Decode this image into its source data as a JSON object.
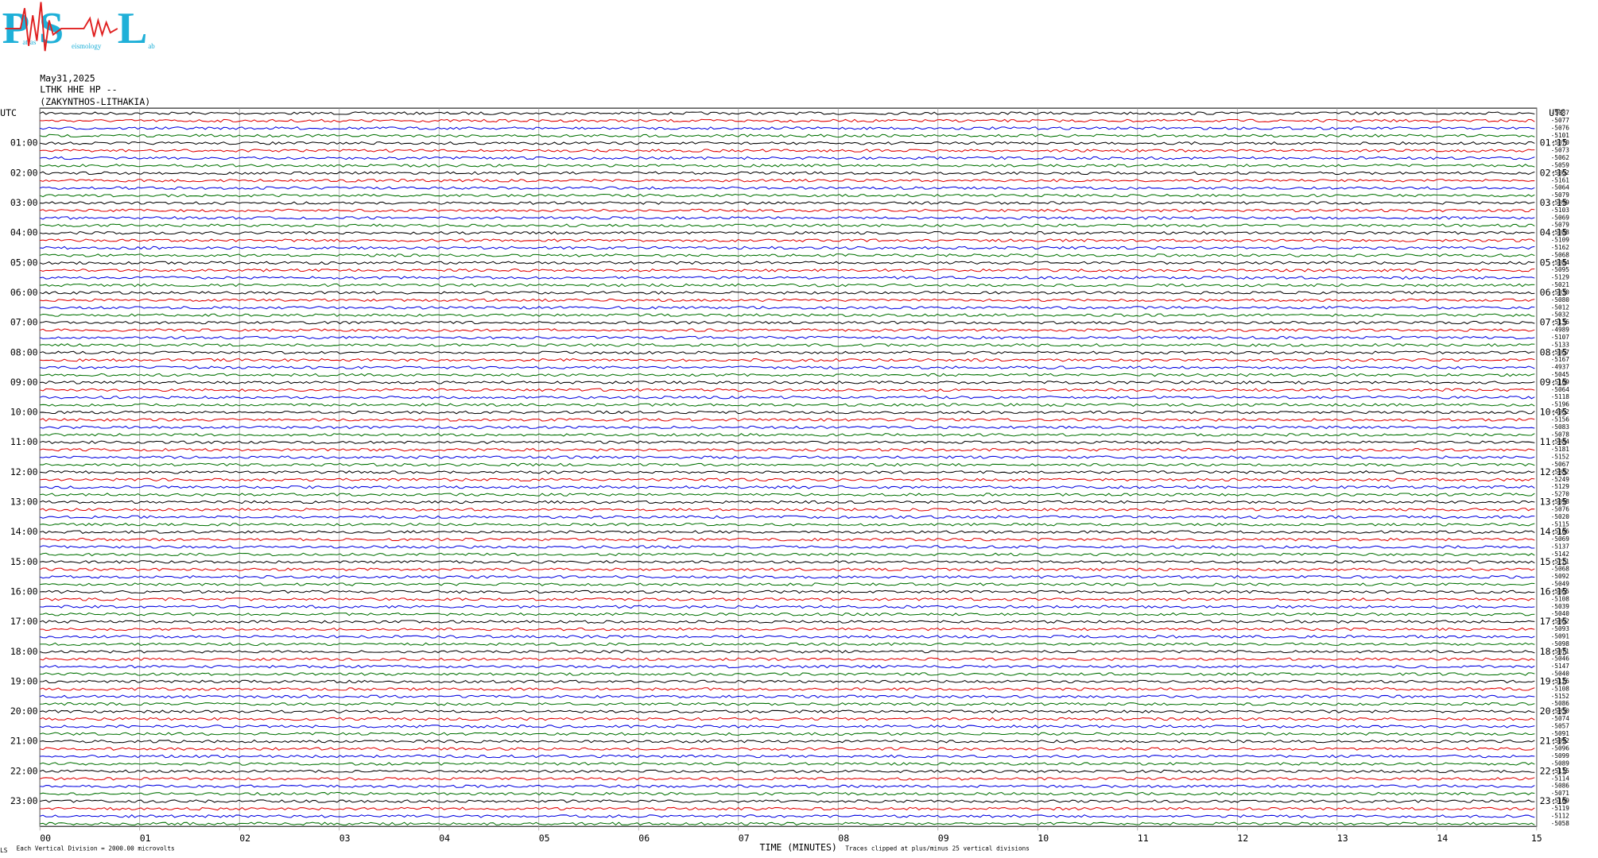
{
  "logo": {
    "big": [
      "P",
      "S",
      "L"
    ],
    "small": [
      "atras",
      "eismology",
      "ab"
    ]
  },
  "header": {
    "date": "May31,2025",
    "station": "LTHK HHE HP --",
    "location": "(ZAKYNTHOS-LITHAKIA)",
    "utc_left": "UTC",
    "utc_right": "UTC"
  },
  "left_labels": [
    "01:00",
    "02:00",
    "03:00",
    "04:00",
    "05:00",
    "06:00",
    "07:00",
    "08:00",
    "09:00",
    "10:00",
    "11:00",
    "12:00",
    "13:00",
    "14:00",
    "15:00",
    "16:00",
    "17:00",
    "18:00",
    "19:00",
    "20:00",
    "21:00",
    "22:00",
    "23:00"
  ],
  "right_labels": [
    "01:15",
    "02:15",
    "03:15",
    "04:15",
    "05:15",
    "06:15",
    "07:15",
    "08:15",
    "09:15",
    "10:15",
    "11:15",
    "12:15",
    "13:15",
    "14:15",
    "15:15",
    "16:15",
    "17:15",
    "18:15",
    "19:15",
    "20:15",
    "21:15",
    "22:15",
    "23:15"
  ],
  "offsets": [
    -5087,
    -5077,
    -5076,
    -5101,
    -5070,
    -5073,
    -5062,
    -5059,
    -5062,
    -5161,
    -5064,
    -5079,
    -5099,
    -5103,
    -5069,
    -5079,
    -5088,
    -5109,
    -5162,
    -5068,
    -5084,
    -5095,
    -5129,
    -5021,
    -5030,
    -5080,
    -5012,
    -5032,
    -5136,
    -4989,
    -5107,
    -5133,
    -5067,
    -5167,
    -4937,
    -5045,
    -5109,
    -5064,
    -5118,
    -5196,
    -4962,
    -5156,
    -5083,
    -5078,
    -5084,
    -5181,
    -5152,
    -5067,
    -5082,
    -5249,
    -5129,
    -5270,
    -5098,
    -5076,
    -5020,
    -5115,
    -5106,
    -5069,
    -5137,
    -5142,
    -5221,
    -5068,
    -5092,
    -5049,
    -5065,
    -5108,
    -5039,
    -5040,
    -5062,
    -5093,
    -5091,
    -5098,
    -5071,
    -5046,
    -5147,
    -5040,
    -5126,
    -5108,
    -5152,
    -5086,
    -5050,
    -5074,
    -5057,
    -5091,
    -5092,
    -5096,
    -5099,
    -5089,
    -5115,
    -5114,
    -5086,
    -5071,
    -5109,
    -5119,
    -5112,
    -5058
  ],
  "x_ticks": [
    "00",
    "01",
    "02",
    "03",
    "04",
    "05",
    "06",
    "07",
    "08",
    "09",
    "10",
    "11",
    "12",
    "13",
    "14",
    "15"
  ],
  "footer": {
    "x_axis_label": "TIME (MINUTES)",
    "left_note": "Each Vertical Division = 2000.00 microvolts",
    "right_note": "Traces clipped at plus/minus 25 vertical divisions",
    "corner": "LS"
  }
}
